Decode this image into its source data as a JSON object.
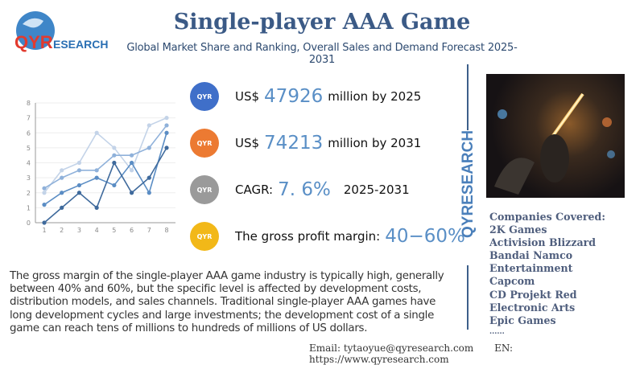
{
  "logo": {
    "text": "QYRESEARCH"
  },
  "header": {
    "title": "Single-player AAA Game",
    "subtitle": "Global Market Share and Ranking, Overall Sales and Demand Forecast 2025-2031"
  },
  "stats": [
    {
      "prefix": "US$",
      "value": "47926",
      "suffix": "million by 2025",
      "color": "#3f6fc9"
    },
    {
      "prefix": "US$",
      "value": "74213",
      "suffix": "million by 2031",
      "color": "#ec7a32"
    },
    {
      "prefix": "CAGR:",
      "value": "7. 6%",
      "suffix": "2025-2031",
      "color": "#9a9a9a"
    },
    {
      "prefix": "The gross profit margin:",
      "value": "40−60%",
      "suffix": "",
      "color": "#f2b818"
    }
  ],
  "vertical_brand": "QYRESEARCH",
  "description": "The gross margin of the single-player AAA game industry is typically high, generally between 40% and 60%, but the specific level is affected by development costs, distribution models, and sales channels. Traditional single-player AAA games have long development cycles and large investments; the development cost of a single game can reach tens of millions to hundreds of millions of US dollars.",
  "companies": {
    "heading": "Companies Covered:",
    "items": [
      "2K Games",
      "Activision Blizzard",
      "Bandai Namco",
      "Entertainment",
      "Capcom",
      "CD Projekt Red",
      "Electronic Arts",
      "Epic Games",
      "......"
    ]
  },
  "footer": {
    "email": "Email:  tytaoyue@qyresearch.com",
    "website": "EN: https://www.qyresearch.com"
  },
  "chart_data": {
    "type": "line",
    "x": [
      1,
      2,
      3,
      4,
      5,
      6,
      7,
      8
    ],
    "ylim": [
      0,
      8
    ],
    "yticks": [
      0,
      1,
      2,
      3,
      4,
      5,
      6,
      7,
      8
    ],
    "grid": true,
    "series": [
      {
        "values": [
          2,
          3.5,
          4,
          6,
          5,
          3.5,
          6.5,
          7
        ],
        "color": "#c3d3e8"
      },
      {
        "values": [
          2.3,
          3,
          3.5,
          3.5,
          4.5,
          4.5,
          5,
          6.5
        ],
        "color": "#8fb1da"
      },
      {
        "values": [
          1.2,
          2,
          2.5,
          3,
          2.5,
          4,
          2,
          6
        ],
        "color": "#5b8dc4"
      },
      {
        "values": [
          0,
          1,
          2,
          1,
          4,
          2,
          3,
          5
        ],
        "color": "#3f6a9c"
      }
    ]
  }
}
